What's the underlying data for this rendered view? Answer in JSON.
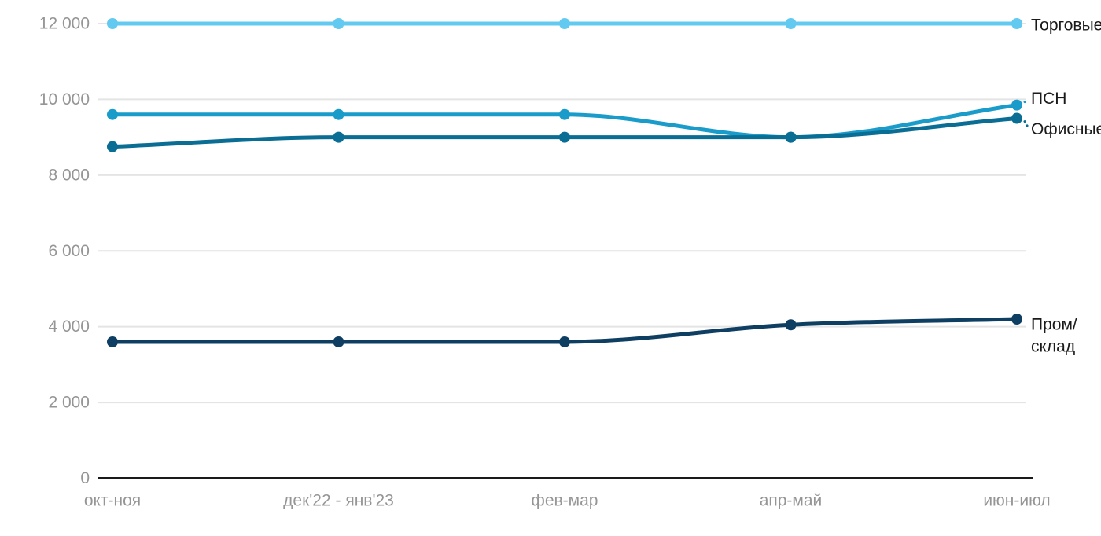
{
  "chart_data": {
    "type": "line",
    "title": "",
    "xlabel": "",
    "ylabel": "",
    "categories": [
      "окт-ноя",
      "дек'22 - янв'23",
      "фев-мар",
      "апр-май",
      "июн-июл"
    ],
    "series": [
      {
        "name": "Торговые",
        "label_lines": [
          "Торговые"
        ],
        "color": "#62CAF0",
        "values": [
          12000,
          12000,
          12000,
          12000,
          12000
        ],
        "label_dy": 2,
        "connector": false
      },
      {
        "name": "ПСН",
        "label_lines": [
          "ПСН"
        ],
        "color": "#1A9CCB",
        "values": [
          9600,
          9600,
          9600,
          9000,
          9850
        ],
        "label_dy": -8,
        "connector": true
      },
      {
        "name": "Офисные",
        "label_lines": [
          "Офисные"
        ],
        "color": "#0A6D94",
        "values": [
          8750,
          9000,
          9000,
          9000,
          9500
        ],
        "label_dy": 14,
        "connector": true
      },
      {
        "name": "Пром/склад",
        "label_lines": [
          "Пром/",
          "склад"
        ],
        "color": "#0E3F62",
        "values": [
          3600,
          3600,
          3600,
          4050,
          4200
        ],
        "label_dy": 7,
        "connector": false
      }
    ],
    "y_ticks": [
      {
        "value": 0,
        "label": "0"
      },
      {
        "value": 2000,
        "label": "2 000"
      },
      {
        "value": 4000,
        "label": "4 000"
      },
      {
        "value": 6000,
        "label": "6 000"
      },
      {
        "value": 8000,
        "label": "8 000"
      },
      {
        "value": 10000,
        "label": "10 000"
      },
      {
        "value": 12000,
        "label": "12 000"
      }
    ],
    "ylim": [
      0,
      12000
    ],
    "grid": true,
    "legend_position": "right-end-labels",
    "styles": {
      "grid_color": "#E4E4E4",
      "zero_axis_color": "#1A1A1A",
      "tick_text_color": "#959595",
      "series_label_color": "#1A1A1A",
      "background": "#FFFFFF"
    }
  }
}
